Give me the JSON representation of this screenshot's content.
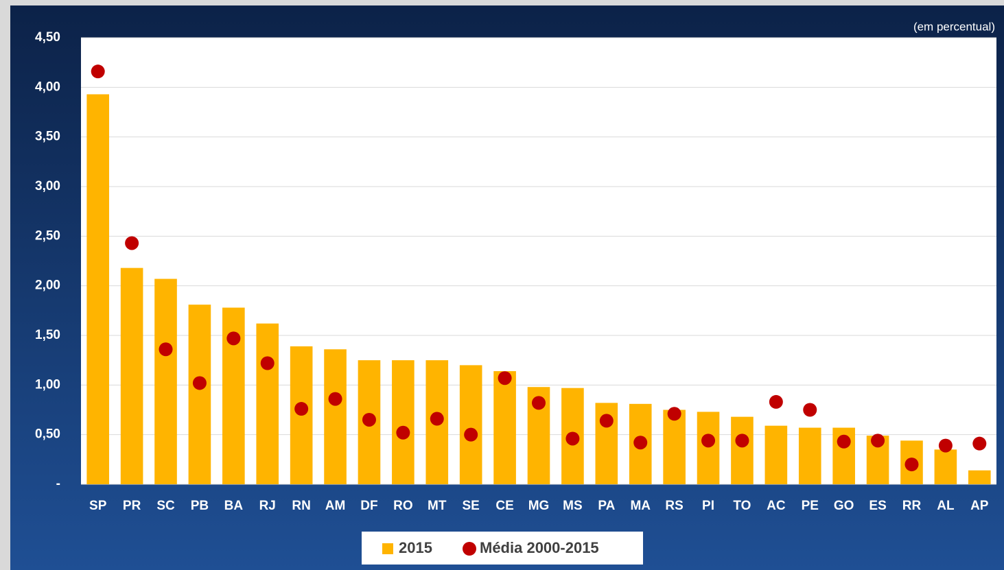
{
  "chart_data": {
    "type": "bar",
    "annotation": "(em percentual)",
    "categories": [
      "SP",
      "PR",
      "SC",
      "PB",
      "BA",
      "RJ",
      "RN",
      "AM",
      "DF",
      "RO",
      "MT",
      "SE",
      "CE",
      "MG",
      "MS",
      "PA",
      "MA",
      "RS",
      "PI",
      "TO",
      "AC",
      "PE",
      "GO",
      "ES",
      "RR",
      "AL",
      "AP"
    ],
    "series": [
      {
        "name": "2015",
        "type": "bar",
        "color": "#ffb400",
        "values": [
          3.93,
          2.18,
          2.07,
          1.81,
          1.78,
          1.62,
          1.39,
          1.36,
          1.25,
          1.25,
          1.25,
          1.2,
          1.14,
          0.98,
          0.97,
          0.82,
          0.81,
          0.75,
          0.73,
          0.68,
          0.59,
          0.57,
          0.57,
          0.49,
          0.44,
          0.35,
          0.14
        ]
      },
      {
        "name": "Média 2000-2015",
        "type": "scatter",
        "color": "#c00000",
        "values": [
          4.16,
          2.43,
          1.36,
          1.02,
          1.47,
          1.22,
          0.76,
          0.86,
          0.65,
          0.52,
          0.66,
          0.5,
          1.07,
          0.82,
          0.46,
          0.64,
          0.42,
          0.71,
          0.44,
          0.44,
          0.83,
          0.75,
          0.43,
          0.44,
          0.2,
          0.39,
          0.41
        ]
      }
    ],
    "ylim": [
      0,
      4.5
    ],
    "yticks": [
      {
        "value": 0,
        "label": "-"
      },
      {
        "value": 0.5,
        "label": "0,50"
      },
      {
        "value": 1,
        "label": "1,00"
      },
      {
        "value": 1.5,
        "label": "1,50"
      },
      {
        "value": 2,
        "label": "2,00"
      },
      {
        "value": 2.5,
        "label": "2,50"
      },
      {
        "value": 3,
        "label": "3,00"
      },
      {
        "value": 3.5,
        "label": "3,50"
      },
      {
        "value": 4,
        "label": "4,00"
      },
      {
        "value": 4.5,
        "label": "4,50"
      }
    ],
    "grid": true
  }
}
